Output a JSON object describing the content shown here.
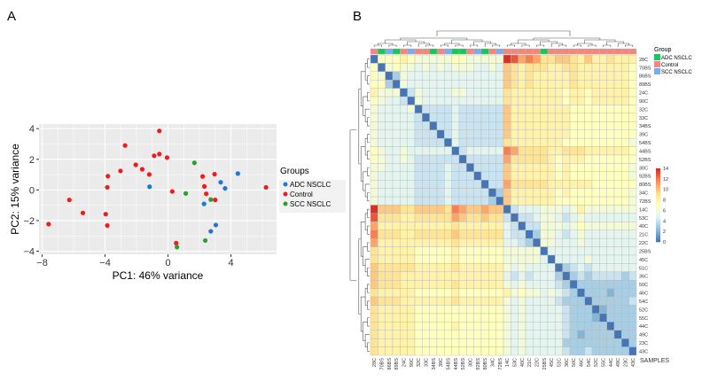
{
  "panel_a_label": "A",
  "panel_b_label": "B",
  "chart_data": [
    {
      "type": "scatter",
      "title": "",
      "xlabel": "PC1: 46% variance",
      "ylabel": "PC2: 15% variance",
      "xlim": [
        -8.2,
        6.9
      ],
      "ylim": [
        -4.2,
        4.3
      ],
      "xticks": [
        -8,
        -4,
        0,
        4
      ],
      "yticks": [
        -4,
        -2,
        0,
        2,
        4
      ],
      "xtick_labels": [
        "−8",
        "−4",
        "0",
        "4"
      ],
      "ytick_labels": [
        "−4",
        "−2",
        "0",
        "2",
        "4"
      ],
      "grid": true,
      "legend": {
        "title": "Groups",
        "placement": "right"
      },
      "series": [
        {
          "name": "ADC NSCLC",
          "color": "#1f78d1",
          "points": [
            [
              -1.17,
              0.21
            ],
            [
              2.29,
              -0.91
            ],
            [
              2.72,
              -2.7
            ],
            [
              3.04,
              -2.29
            ],
            [
              3.35,
              0.5
            ],
            [
              3.63,
              0.1
            ],
            [
              4.44,
              1.07
            ]
          ]
        },
        {
          "name": "Control",
          "color": "#ee1c1c",
          "points": [
            [
              -7.59,
              -2.23
            ],
            [
              -6.27,
              -0.65
            ],
            [
              -5.41,
              -1.5
            ],
            [
              -3.96,
              -1.58
            ],
            [
              -3.86,
              -2.32
            ],
            [
              -3.86,
              0.17
            ],
            [
              -3.82,
              0.9
            ],
            [
              -3.02,
              1.24
            ],
            [
              -2.73,
              2.9
            ],
            [
              -2.05,
              1.64
            ],
            [
              -1.64,
              1.35
            ],
            [
              -1.19,
              1.01
            ],
            [
              -0.88,
              2.23
            ],
            [
              -0.55,
              2.34
            ],
            [
              -0.55,
              3.85
            ],
            [
              -0.06,
              2.11
            ],
            [
              0.27,
              -0.1
            ],
            [
              0.52,
              -3.47
            ],
            [
              2.2,
              0.88
            ],
            [
              2.31,
              0.23
            ],
            [
              2.43,
              -0.25
            ],
            [
              2.96,
              1.03
            ],
            [
              3.0,
              -0.65
            ],
            [
              6.23,
              0.17
            ]
          ]
        },
        {
          "name": "SCC NSCLC",
          "color": "#2ca02c",
          "points": [
            [
              1.68,
              1.77
            ],
            [
              1.13,
              -0.23
            ],
            [
              2.72,
              -0.63
            ],
            [
              2.37,
              -3.3
            ],
            [
              0.57,
              -3.73
            ]
          ]
        }
      ]
    },
    {
      "type": "heatmap",
      "title": "",
      "xlabel": "SAMPLES",
      "samples": [
        "28C",
        "70BS",
        "86BS",
        "89BS",
        "24C",
        "90C",
        "32C",
        "33C",
        "34BS",
        "39C",
        "54BS",
        "44BS",
        "52BS",
        "30C",
        "92BS",
        "80BS",
        "34C",
        "72BS",
        "14C",
        "53C",
        "40C",
        "21C",
        "22C",
        "25BS",
        "45C",
        "51C",
        "36C",
        "50C",
        "46C",
        "54C",
        "52C",
        "55C",
        "44C",
        "49C",
        "23C",
        "43C"
      ],
      "column_groups": [
        "Control",
        "ADC NSCLC",
        "SCC NSCLC",
        "ADC NSCLC",
        "Control",
        "SCC NSCLC",
        "Control",
        "Control",
        "ADC NSCLC",
        "Control",
        "SCC NSCLC",
        "ADC NSCLC",
        "ADC NSCLC",
        "Control",
        "SCC NSCLC",
        "ADC NSCLC",
        "Control",
        "SCC NSCLC",
        "Control",
        "Control",
        "Control",
        "Control",
        "Control",
        "ADC NSCLC",
        "Control",
        "Control",
        "Control",
        "Control",
        "Control",
        "Control",
        "Control",
        "Control",
        "Control",
        "Control",
        "Control",
        "Control"
      ],
      "group_legend": {
        "title": "Group",
        "items": [
          {
            "name": "ADC NSCLC",
            "color": "#16c75a"
          },
          {
            "name": "Control",
            "color": "#f4877d"
          },
          {
            "name": "SCC NSCLC",
            "color": "#7aaaf0"
          }
        ]
      },
      "value_encoding": "hex digit per cell, 0-14",
      "rows": [
        "077787666667766666edbcb99aa98a889888",
        "706766565656665565a98999889988888887",
        "760365555555555555a98988888988888887",
        "773065555555555555a98988888988888887",
        "866604655556655555988888887887888887",
        "765540655555555555988888887887888887",
        "655556044445444444a88888888777777777",
        "655555404445444444a88888888777777777",
        "655555440445444444a88888888777777777",
        "655555444045444444a88888888777777777",
        "655555444405444444988888887777777776",
        "765565555550455555cb9999889998888887",
        "765565444444044444b99999878887777777",
        "665555444454404444a88888878777777776",
        "655555444454440444a88888878777777776",
        "655555444454444044b99999888888777777",
        "655555444454444403a88888878777777776",
        "655555444454444430a88888877777777776",
        "eaaa99aaaa9cbaabaa045556665686666666",
        "d9998899999ba99a99404456654565555555",
        "b88888888889888888540446665676666666",
        "c9998899999a999999544036654565555555",
        "b88888888889888888554306655565555555",
        "988888777778777777666660555555555555",
        "988888777778777777666665055556555555",
        "a99999888889888888656555503454555555",
        "a99988888888888888545455530343444434",
        "a99988888889888888656555543033333333",
        "988888777778777777867665654303332333",
        "a99988888889888888656555543330333334",
        "988888777777777777656555554333023333",
        "988888777777777777656555554333203333",
        "988888777778777777656555554333330333",
        "988888777777777777656555554323333033",
        "988888777777777777656555553333333303",
        "988888777777777777656555554334333330"
      ],
      "colorbar": {
        "range": [
          0,
          14
        ],
        "tick_labels": [
          "14",
          "12",
          "10",
          "8",
          "6",
          "4",
          "2",
          "0"
        ],
        "colors": [
          "#4575B4",
          "#91BFDB",
          "#E0F3F8",
          "#FFFFBF",
          "#FEE090",
          "#FC8D59",
          "#D73027"
        ]
      }
    }
  ]
}
